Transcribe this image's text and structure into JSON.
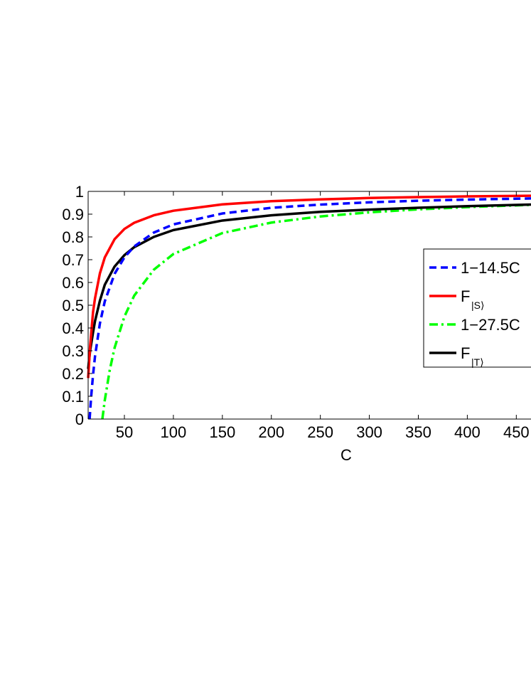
{
  "chart_data": {
    "type": "line",
    "xlabel": "C",
    "ylabel": "",
    "title": "",
    "xlim": [
      13,
      465
    ],
    "ylim": [
      0,
      1
    ],
    "x_ticks": [
      50,
      100,
      150,
      200,
      250,
      300,
      350,
      400,
      450
    ],
    "x_tick_labels": [
      "50",
      "100",
      "150",
      "200",
      "250",
      "300",
      "350",
      "400",
      "450"
    ],
    "y_ticks": [
      0,
      0.1,
      0.2,
      0.3,
      0.4,
      0.5,
      0.6,
      0.7,
      0.8,
      0.9,
      1
    ],
    "y_tick_labels": [
      "0",
      "0.1",
      "0.2",
      "0.3",
      "0.4",
      "0.5",
      "0.6",
      "0.7",
      "0.8",
      "0.9",
      "1"
    ],
    "grid": false,
    "legend_position": "right",
    "series": [
      {
        "legend_label": "1−14.5C",
        "style": "dashed",
        "color": "#0000ff",
        "x": [
          14.5,
          16,
          18,
          20,
          25,
          30,
          40,
          50,
          60,
          80,
          100,
          150,
          200,
          250,
          300,
          350,
          400,
          465
        ],
        "y": [
          0.0,
          0.094,
          0.194,
          0.275,
          0.42,
          0.517,
          0.638,
          0.71,
          0.758,
          0.819,
          0.855,
          0.903,
          0.928,
          0.942,
          0.952,
          0.959,
          0.964,
          0.969
        ]
      },
      {
        "legend_label": "F",
        "legend_subscript": "|S⟩",
        "style": "solid",
        "color": "#ff0000",
        "x": [
          13,
          15,
          18,
          20,
          25,
          30,
          40,
          50,
          60,
          80,
          100,
          150,
          200,
          250,
          300,
          350,
          400,
          465
        ],
        "y": [
          0.18,
          0.32,
          0.47,
          0.53,
          0.64,
          0.71,
          0.79,
          0.835,
          0.862,
          0.895,
          0.915,
          0.943,
          0.957,
          0.965,
          0.971,
          0.975,
          0.978,
          0.981
        ]
      },
      {
        "legend_label": "1−27.5C",
        "style": "dash-dot",
        "color": "#00ff00",
        "x": [
          27.5,
          30,
          35,
          40,
          50,
          60,
          80,
          100,
          150,
          200,
          250,
          300,
          350,
          400,
          465
        ],
        "y": [
          0.0,
          0.083,
          0.214,
          0.313,
          0.45,
          0.542,
          0.656,
          0.725,
          0.817,
          0.863,
          0.89,
          0.908,
          0.921,
          0.931,
          0.941
        ]
      },
      {
        "legend_label": "F",
        "legend_subscript": "|T⟩",
        "style": "solid",
        "color": "#000000",
        "x": [
          13,
          15,
          18,
          20,
          25,
          30,
          40,
          50,
          60,
          80,
          100,
          150,
          200,
          250,
          300,
          350,
          400,
          465
        ],
        "y": [
          0.22,
          0.3,
          0.38,
          0.43,
          0.52,
          0.59,
          0.67,
          0.72,
          0.755,
          0.8,
          0.83,
          0.872,
          0.895,
          0.91,
          0.92,
          0.928,
          0.935,
          0.942
        ]
      }
    ]
  }
}
